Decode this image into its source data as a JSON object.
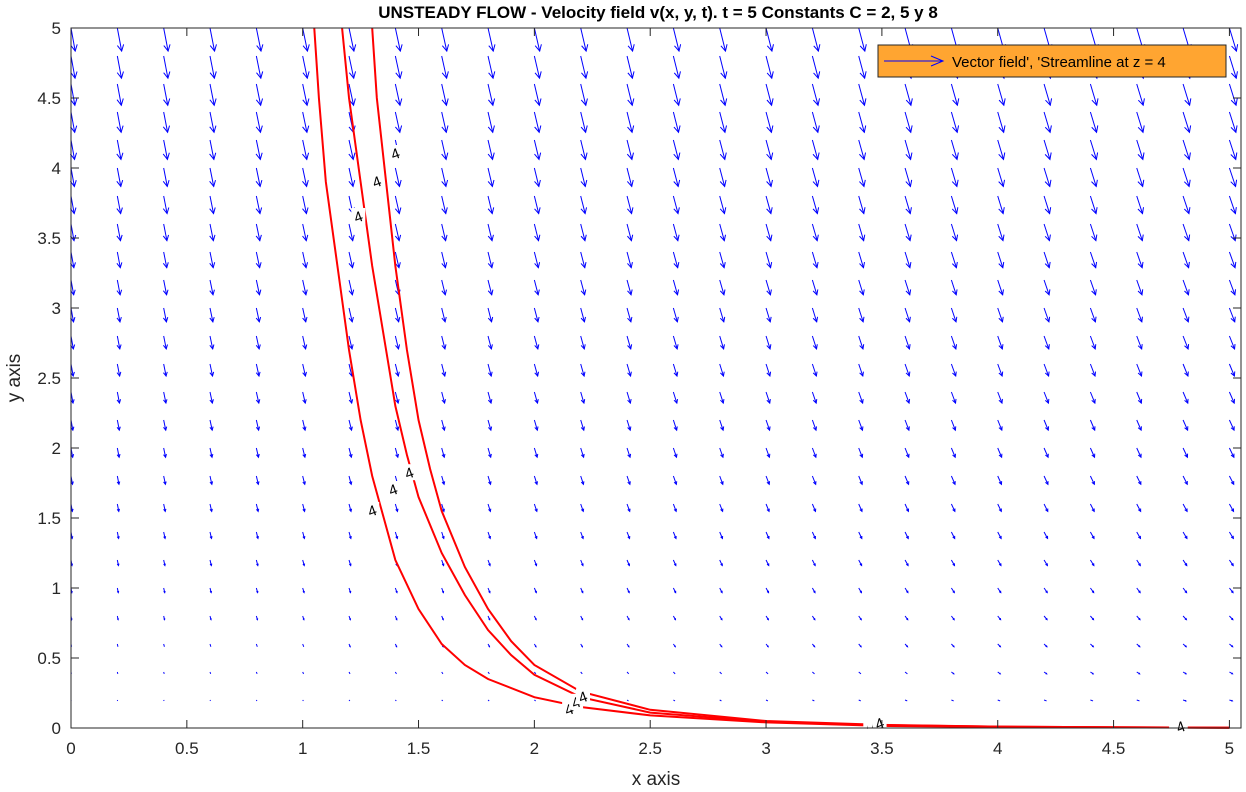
{
  "chart_data": {
    "type": "quiver-contour",
    "title": "UNSTEADY FLOW - Velocity field v(x, y, t). t = 5  Constants C = 2, 5 y 8",
    "xlabel": "x axis",
    "ylabel": "y axis",
    "xlim": [
      0,
      5.05
    ],
    "ylim": [
      0,
      5
    ],
    "xticks": [
      "0",
      "0.5",
      "1",
      "1.5",
      "2",
      "2.5",
      "3",
      "3.5",
      "4",
      "4.5",
      "5"
    ],
    "yticks": [
      "0",
      "0.5",
      "1",
      "1.5",
      "2",
      "2.5",
      "3",
      "3.5",
      "4",
      "4.5",
      "5"
    ],
    "grid": false,
    "legend": {
      "position": "top-right",
      "background": "#FFA531",
      "entries": [
        "Vector field', 'Streamline at z = 4"
      ]
    },
    "vector_field": {
      "color": "#0000FF",
      "x_start": 0,
      "x_step": 0.2,
      "x_count": 26,
      "y_start": 0,
      "y_step": 0.2,
      "y_count": 26
    },
    "streamline_level": "4",
    "streamline_color": "#FF0000",
    "constants": [
      2,
      5,
      8
    ],
    "streamlines": [
      {
        "name": "C = 2",
        "x": [
          1.05,
          1.07,
          1.1,
          1.15,
          1.2,
          1.25,
          1.3,
          1.35,
          1.4,
          1.5,
          1.6,
          1.7,
          1.8,
          2.0,
          2.2,
          2.5,
          3.0,
          3.5,
          4.0,
          4.5,
          5.0
        ],
        "y": [
          5.0,
          4.5,
          3.9,
          3.3,
          2.7,
          2.2,
          1.8,
          1.5,
          1.2,
          0.85,
          0.6,
          0.45,
          0.35,
          0.22,
          0.15,
          0.09,
          0.04,
          0.015,
          0.008,
          0.004,
          0.002
        ]
      },
      {
        "name": "C = 5",
        "x": [
          1.17,
          1.2,
          1.25,
          1.3,
          1.35,
          1.4,
          1.45,
          1.5,
          1.6,
          1.7,
          1.8,
          1.9,
          2.0,
          2.2,
          2.5,
          3.0,
          3.5,
          4.0,
          4.5,
          5.0
        ],
        "y": [
          5.0,
          4.5,
          3.9,
          3.3,
          2.8,
          2.3,
          1.95,
          1.65,
          1.25,
          0.95,
          0.7,
          0.52,
          0.38,
          0.22,
          0.11,
          0.045,
          0.02,
          0.01,
          0.005,
          0.002
        ]
      },
      {
        "name": "C = 8",
        "x": [
          1.3,
          1.32,
          1.36,
          1.4,
          1.45,
          1.5,
          1.55,
          1.6,
          1.7,
          1.8,
          1.9,
          2.0,
          2.2,
          2.5,
          3.0,
          3.5,
          4.0,
          4.5,
          5.0
        ],
        "y": [
          5.0,
          4.5,
          3.9,
          3.3,
          2.7,
          2.2,
          1.85,
          1.55,
          1.15,
          0.85,
          0.62,
          0.45,
          0.26,
          0.13,
          0.05,
          0.022,
          0.01,
          0.005,
          0.002
        ]
      }
    ],
    "streamline_labels": [
      {
        "x": 1.24,
        "y": 3.65
      },
      {
        "x": 1.32,
        "y": 3.9
      },
      {
        "x": 1.4,
        "y": 4.1
      },
      {
        "x": 1.3,
        "y": 1.55
      },
      {
        "x": 1.39,
        "y": 1.7
      },
      {
        "x": 1.46,
        "y": 1.82
      },
      {
        "x": 2.15,
        "y": 0.13
      },
      {
        "x": 2.18,
        "y": 0.18
      },
      {
        "x": 2.21,
        "y": 0.22
      },
      {
        "x": 3.45,
        "y": 0.02
      },
      {
        "x": 3.47,
        "y": 0.025
      },
      {
        "x": 3.49,
        "y": 0.03
      },
      {
        "x": 4.77,
        "y": 0.005
      },
      {
        "x": 4.78,
        "y": 0.006
      },
      {
        "x": 4.79,
        "y": 0.007
      }
    ]
  }
}
